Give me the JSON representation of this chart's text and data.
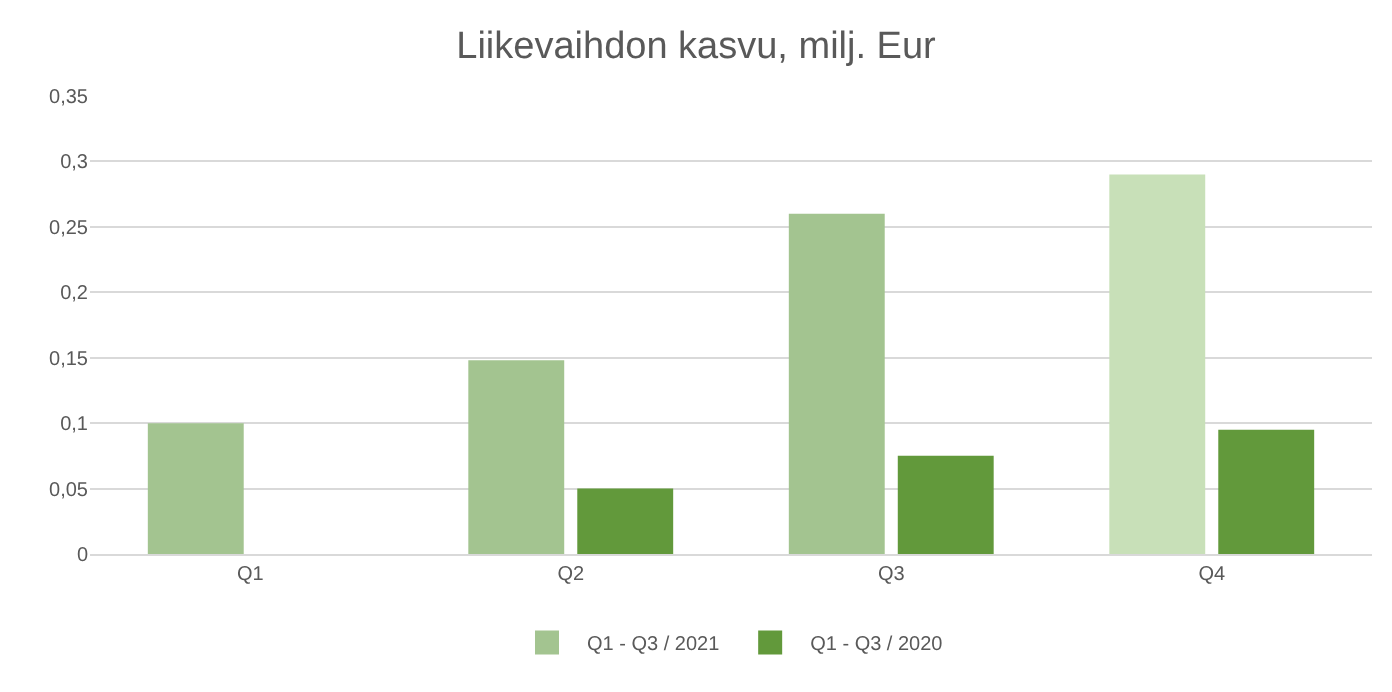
{
  "chart_data": {
    "type": "bar",
    "title": "Liikevaihdon kasvu, milj. Eur",
    "categories": [
      "Q1",
      "Q2",
      "Q3",
      "Q4"
    ],
    "series": [
      {
        "name": "Q1 - Q3 / 2021",
        "color": "#a3c490",
        "colors": [
          "#a3c490",
          "#a3c490",
          "#a3c490",
          "#c8e0b8"
        ],
        "values": [
          0.1,
          0.148,
          0.26,
          0.29
        ]
      },
      {
        "name": "Q1 - Q3 / 2020",
        "color": "#62993b",
        "values": [
          null,
          0.05,
          0.075,
          0.095
        ]
      }
    ],
    "ylim": [
      0,
      0.35
    ],
    "yticks": [
      {
        "value": 0,
        "label": "0"
      },
      {
        "value": 0.05,
        "label": "0,05"
      },
      {
        "value": 0.1,
        "label": "0,1"
      },
      {
        "value": 0.15,
        "label": "0,15"
      },
      {
        "value": 0.2,
        "label": "0,2"
      },
      {
        "value": 0.25,
        "label": "0,25"
      },
      {
        "value": 0.3,
        "label": "0,3"
      },
      {
        "value": 0.35,
        "label": "0,35"
      }
    ],
    "grid": "y",
    "legend": "bottom"
  }
}
